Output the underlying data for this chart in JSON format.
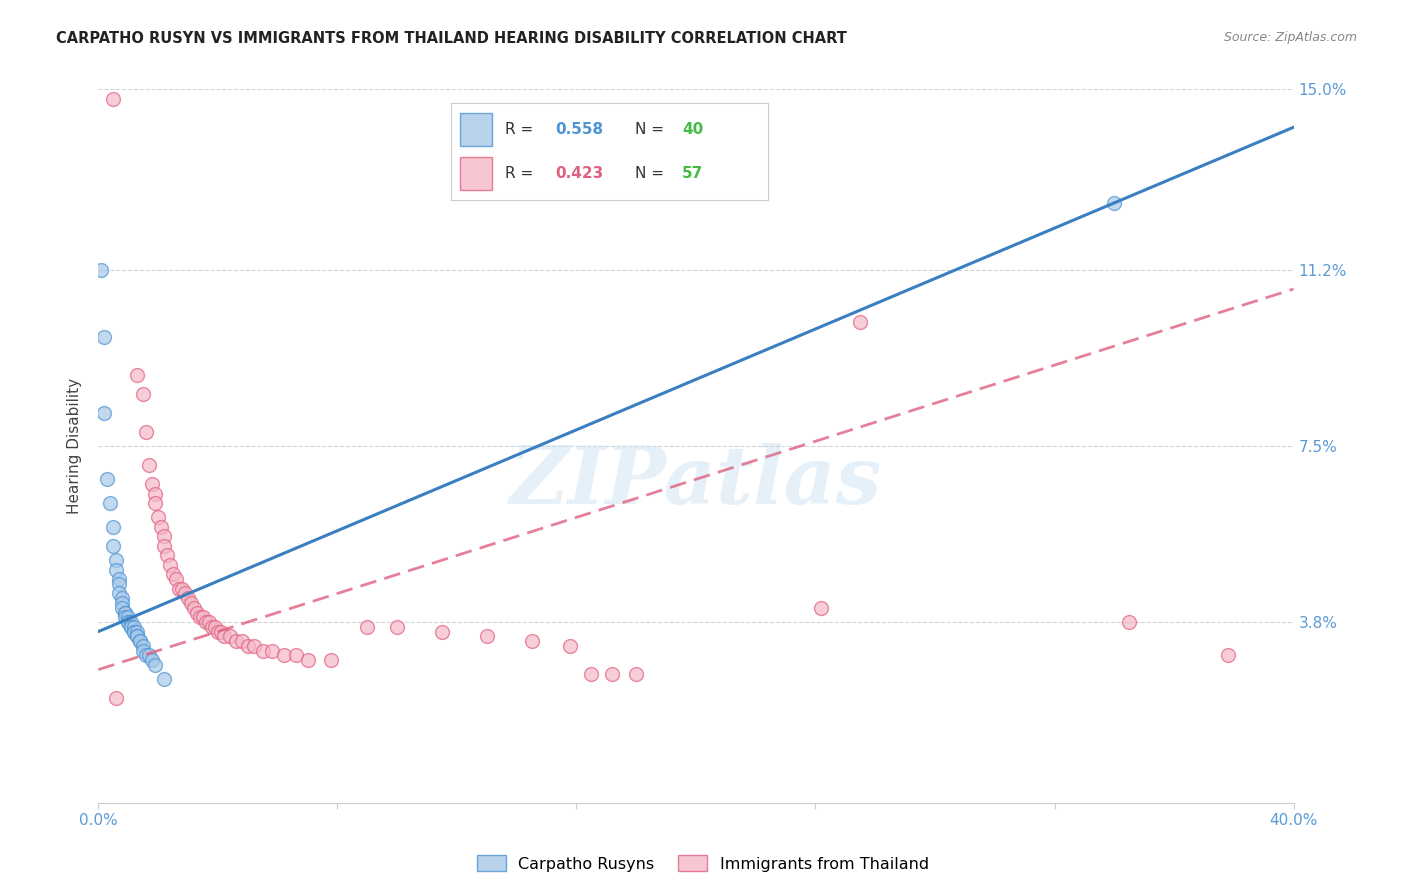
{
  "title": "CARPATHO RUSYN VS IMMIGRANTS FROM THAILAND HEARING DISABILITY CORRELATION CHART",
  "source": "Source: ZipAtlas.com",
  "ylabel": "Hearing Disability",
  "xlim": [
    0.0,
    0.4
  ],
  "ylim": [
    0.0,
    0.15
  ],
  "ytick_labels": [
    "15.0%",
    "11.2%",
    "7.5%",
    "3.8%"
  ],
  "ytick_values": [
    0.15,
    0.112,
    0.075,
    0.038
  ],
  "watermark": "ZIPatlas",
  "background_color": "#ffffff",
  "grid_color": "#d0d0d0",
  "blue_color": "#a8c8e8",
  "pink_color": "#f4b8c8",
  "blue_edge_color": "#4d94d4",
  "pink_edge_color": "#e06080",
  "blue_line_color": "#3a7fc1",
  "pink_line_color": "#e06080",
  "right_label_color": "#5b9bd5",
  "tick_color": "#5b9bd5",
  "legend_r1": "R = 0.558",
  "legend_n1": "N = 40",
  "legend_r2": "R = 0.423",
  "legend_n2": "N = 57",
  "legend_r_color": "#4d94d4",
  "legend_n_color": "#44bb44",
  "legend_r2_color": "#e06080",
  "blue_scatter": [
    [
      0.001,
      0.112
    ],
    [
      0.002,
      0.098
    ],
    [
      0.002,
      0.082
    ],
    [
      0.003,
      0.068
    ],
    [
      0.004,
      0.063
    ],
    [
      0.005,
      0.058
    ],
    [
      0.005,
      0.054
    ],
    [
      0.006,
      0.051
    ],
    [
      0.006,
      0.049
    ],
    [
      0.007,
      0.047
    ],
    [
      0.007,
      0.046
    ],
    [
      0.007,
      0.044
    ],
    [
      0.008,
      0.043
    ],
    [
      0.008,
      0.042
    ],
    [
      0.008,
      0.041
    ],
    [
      0.009,
      0.04
    ],
    [
      0.009,
      0.04
    ],
    [
      0.009,
      0.039
    ],
    [
      0.01,
      0.039
    ],
    [
      0.01,
      0.038
    ],
    [
      0.01,
      0.038
    ],
    [
      0.011,
      0.038
    ],
    [
      0.011,
      0.037
    ],
    [
      0.011,
      0.037
    ],
    [
      0.012,
      0.037
    ],
    [
      0.012,
      0.036
    ],
    [
      0.012,
      0.036
    ],
    [
      0.013,
      0.036
    ],
    [
      0.013,
      0.035
    ],
    [
      0.013,
      0.035
    ],
    [
      0.014,
      0.034
    ],
    [
      0.014,
      0.034
    ],
    [
      0.015,
      0.033
    ],
    [
      0.015,
      0.032
    ],
    [
      0.016,
      0.031
    ],
    [
      0.017,
      0.031
    ],
    [
      0.018,
      0.03
    ],
    [
      0.019,
      0.029
    ],
    [
      0.022,
      0.026
    ],
    [
      0.34,
      0.126
    ]
  ],
  "pink_scatter": [
    [
      0.005,
      0.148
    ],
    [
      0.013,
      0.09
    ],
    [
      0.015,
      0.086
    ],
    [
      0.016,
      0.078
    ],
    [
      0.017,
      0.071
    ],
    [
      0.018,
      0.067
    ],
    [
      0.019,
      0.065
    ],
    [
      0.019,
      0.063
    ],
    [
      0.02,
      0.06
    ],
    [
      0.021,
      0.058
    ],
    [
      0.022,
      0.056
    ],
    [
      0.022,
      0.054
    ],
    [
      0.023,
      0.052
    ],
    [
      0.024,
      0.05
    ],
    [
      0.025,
      0.048
    ],
    [
      0.026,
      0.047
    ],
    [
      0.027,
      0.045
    ],
    [
      0.028,
      0.045
    ],
    [
      0.029,
      0.044
    ],
    [
      0.03,
      0.043
    ],
    [
      0.031,
      0.042
    ],
    [
      0.032,
      0.041
    ],
    [
      0.033,
      0.04
    ],
    [
      0.034,
      0.039
    ],
    [
      0.035,
      0.039
    ],
    [
      0.036,
      0.038
    ],
    [
      0.037,
      0.038
    ],
    [
      0.038,
      0.037
    ],
    [
      0.039,
      0.037
    ],
    [
      0.04,
      0.036
    ],
    [
      0.041,
      0.036
    ],
    [
      0.042,
      0.035
    ],
    [
      0.044,
      0.035
    ],
    [
      0.046,
      0.034
    ],
    [
      0.048,
      0.034
    ],
    [
      0.05,
      0.033
    ],
    [
      0.052,
      0.033
    ],
    [
      0.055,
      0.032
    ],
    [
      0.058,
      0.032
    ],
    [
      0.062,
      0.031
    ],
    [
      0.066,
      0.031
    ],
    [
      0.07,
      0.03
    ],
    [
      0.078,
      0.03
    ],
    [
      0.09,
      0.037
    ],
    [
      0.1,
      0.037
    ],
    [
      0.115,
      0.036
    ],
    [
      0.13,
      0.035
    ],
    [
      0.145,
      0.034
    ],
    [
      0.158,
      0.033
    ],
    [
      0.165,
      0.027
    ],
    [
      0.172,
      0.027
    ],
    [
      0.18,
      0.027
    ],
    [
      0.242,
      0.041
    ],
    [
      0.255,
      0.101
    ],
    [
      0.345,
      0.038
    ],
    [
      0.378,
      0.031
    ],
    [
      0.006,
      0.022
    ]
  ],
  "blue_trendline": [
    [
      0.0,
      0.036
    ],
    [
      0.4,
      0.142
    ]
  ],
  "pink_trendline": [
    [
      0.0,
      0.028
    ],
    [
      0.4,
      0.108
    ]
  ]
}
